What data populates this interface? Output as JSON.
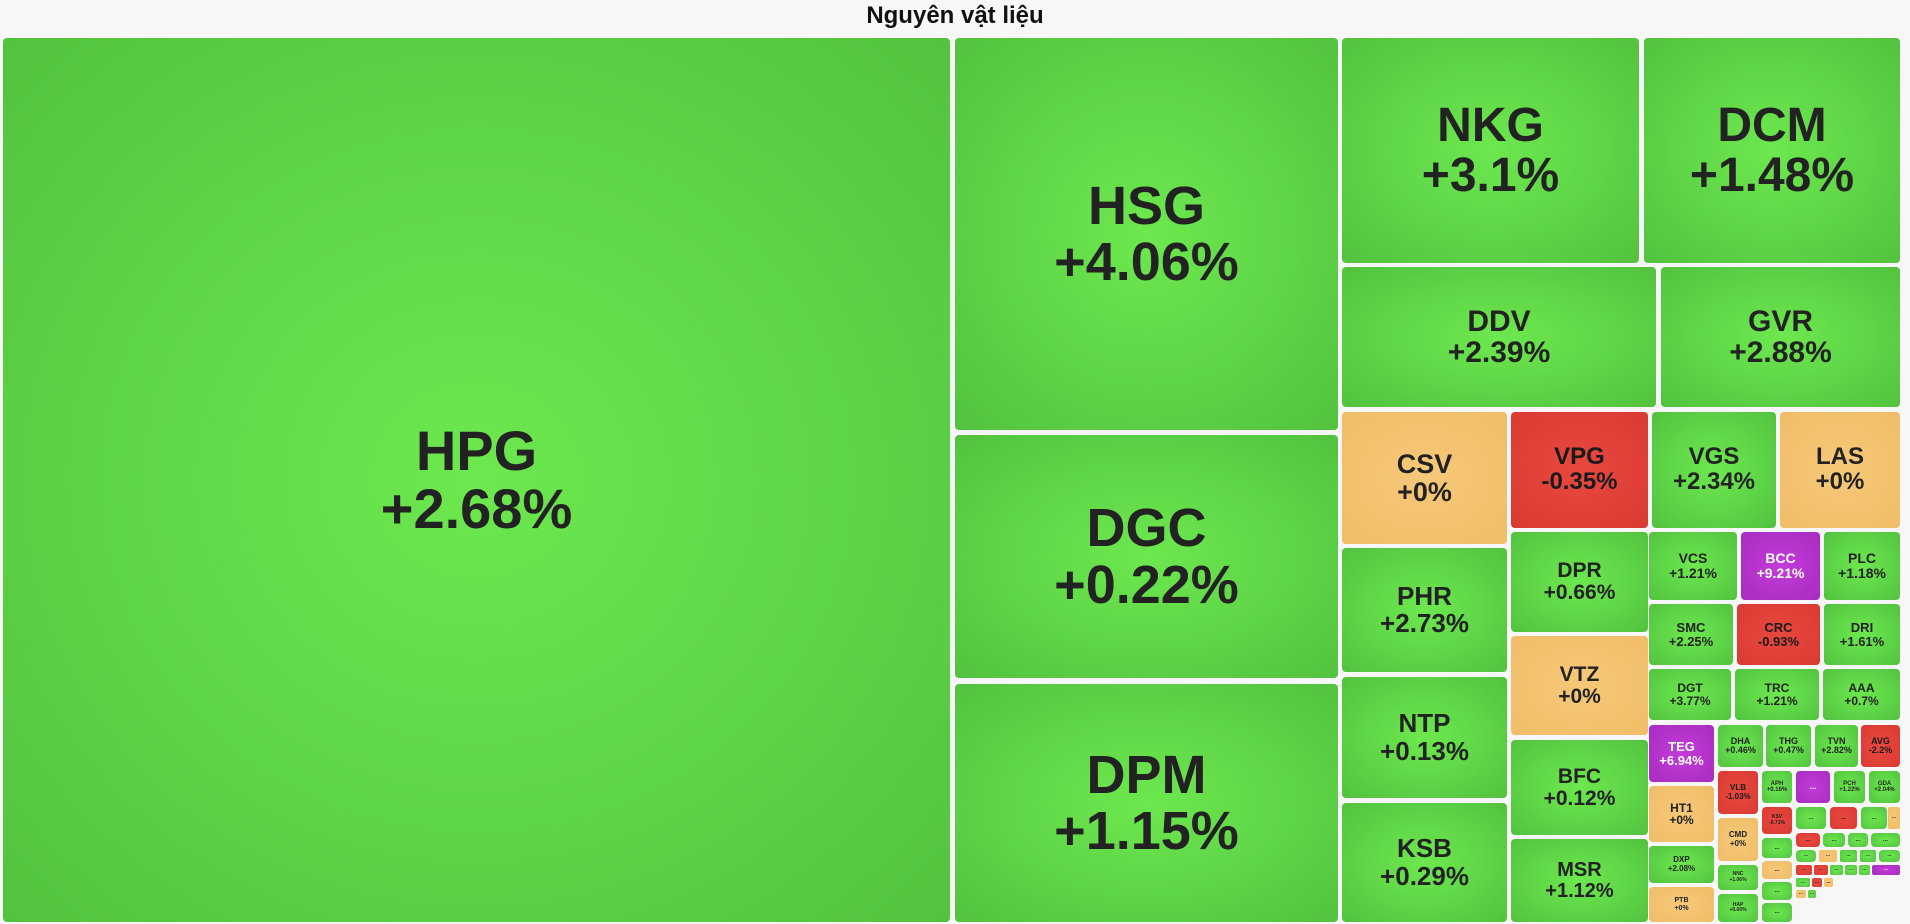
{
  "title": "Nguyên vật liệu",
  "colors": {
    "up": "#5ed447",
    "ref": "#f0bd68",
    "down": "#d93a32",
    "ceil": "#b030c8",
    "background": "#f7f7f7"
  },
  "chart_data": {
    "type": "treemap",
    "title": "Nguyên vật liệu",
    "tiles": [
      {
        "ticker": "HPG",
        "change": "+2.68%",
        "value": 2.68,
        "status": "up"
      },
      {
        "ticker": "HSG",
        "change": "+4.06%",
        "value": 4.06,
        "status": "up"
      },
      {
        "ticker": "DGC",
        "change": "+0.22%",
        "value": 0.22,
        "status": "up"
      },
      {
        "ticker": "DPM",
        "change": "+1.15%",
        "value": 1.15,
        "status": "up"
      },
      {
        "ticker": "NKG",
        "change": "+3.1%",
        "value": 3.1,
        "status": "up"
      },
      {
        "ticker": "DCM",
        "change": "+1.48%",
        "value": 1.48,
        "status": "up"
      },
      {
        "ticker": "DDV",
        "change": "+2.39%",
        "value": 2.39,
        "status": "up"
      },
      {
        "ticker": "GVR",
        "change": "+2.88%",
        "value": 2.88,
        "status": "up"
      },
      {
        "ticker": "CSV",
        "change": "+0%",
        "value": 0,
        "status": "ref"
      },
      {
        "ticker": "VPG",
        "change": "-0.35%",
        "value": -0.35,
        "status": "down"
      },
      {
        "ticker": "VGS",
        "change": "+2.34%",
        "value": 2.34,
        "status": "up"
      },
      {
        "ticker": "LAS",
        "change": "+0%",
        "value": 0,
        "status": "ref"
      },
      {
        "ticker": "PHR",
        "change": "+2.73%",
        "value": 2.73,
        "status": "up"
      },
      {
        "ticker": "NTP",
        "change": "+0.13%",
        "value": 0.13,
        "status": "up"
      },
      {
        "ticker": "KSB",
        "change": "+0.29%",
        "value": 0.29,
        "status": "up"
      },
      {
        "ticker": "DPR",
        "change": "+0.66%",
        "value": 0.66,
        "status": "up"
      },
      {
        "ticker": "VTZ",
        "change": "+0%",
        "value": 0,
        "status": "ref"
      },
      {
        "ticker": "BFC",
        "change": "+0.12%",
        "value": 0.12,
        "status": "up"
      },
      {
        "ticker": "MSR",
        "change": "+1.12%",
        "value": 1.12,
        "status": "up"
      },
      {
        "ticker": "VCS",
        "change": "+1.21%",
        "value": 1.21,
        "status": "up"
      },
      {
        "ticker": "BCC",
        "change": "+9.21%",
        "value": 9.21,
        "status": "ceil"
      },
      {
        "ticker": "PLC",
        "change": "+1.18%",
        "value": 1.18,
        "status": "up"
      },
      {
        "ticker": "SMC",
        "change": "+2.25%",
        "value": 2.25,
        "status": "up"
      },
      {
        "ticker": "CRC",
        "change": "-0.93%",
        "value": -0.93,
        "status": "down"
      },
      {
        "ticker": "DRI",
        "change": "+1.61%",
        "value": 1.61,
        "status": "up"
      },
      {
        "ticker": "DGT",
        "change": "+3.77%",
        "value": 3.77,
        "status": "up"
      },
      {
        "ticker": "TRC",
        "change": "+1.21%",
        "value": 1.21,
        "status": "up"
      },
      {
        "ticker": "AAA",
        "change": "+0.7%",
        "value": 0.7,
        "status": "up"
      },
      {
        "ticker": "TEG",
        "change": "+6.94%",
        "value": 6.94,
        "status": "ceil"
      },
      {
        "ticker": "DHA",
        "change": "+0.46%",
        "value": 0.46,
        "status": "up"
      },
      {
        "ticker": "THG",
        "change": "+0.47%",
        "value": 0.47,
        "status": "up"
      },
      {
        "ticker": "TVN",
        "change": "+2.82%",
        "value": 2.82,
        "status": "up"
      },
      {
        "ticker": "AVG",
        "change": "-2.2%",
        "value": -2.2,
        "status": "down"
      },
      {
        "ticker": "HT1",
        "change": "+0%",
        "value": 0,
        "status": "ref"
      },
      {
        "ticker": "VLB",
        "change": "-1.03%",
        "value": -1.03,
        "status": "down"
      },
      {
        "ticker": "APH",
        "change": "+0.16%",
        "value": 0.16,
        "status": "up"
      },
      {
        "ticker": "...",
        "change": "",
        "value": null,
        "status": "ceil"
      },
      {
        "ticker": "PCH",
        "change": "+1.22%",
        "value": 1.22,
        "status": "up"
      },
      {
        "ticker": "GDA",
        "change": "+2.04%",
        "value": 2.04,
        "status": "up"
      },
      {
        "ticker": "KSV",
        "change": "-0.71%",
        "value": -0.71,
        "status": "down"
      },
      {
        "ticker": "CMD",
        "change": "+0%",
        "value": 0,
        "status": "ref"
      },
      {
        "ticker": "DXP",
        "change": "+2.08%",
        "value": 2.08,
        "status": "up"
      },
      {
        "ticker": "NNC",
        "change": "+1.06%",
        "value": 1.06,
        "status": "up"
      },
      {
        "ticker": "PTB",
        "change": "+0%",
        "value": 0,
        "status": "ref"
      },
      {
        "ticker": "HAP",
        "change": "+0.69%",
        "value": 0.69,
        "status": "up"
      },
      {
        "ticker": "...",
        "change": "",
        "value": null,
        "status": "up"
      },
      {
        "ticker": "...",
        "change": "",
        "value": null,
        "status": "down"
      },
      {
        "ticker": "...",
        "change": "",
        "value": null,
        "status": "up"
      },
      {
        "ticker": "...",
        "change": "",
        "value": null,
        "status": "ref"
      },
      {
        "ticker": "...",
        "change": "",
        "value": null,
        "status": "up"
      },
      {
        "ticker": "...",
        "change": "",
        "value": null,
        "status": "down"
      },
      {
        "ticker": "...",
        "change": "",
        "value": null,
        "status": "up"
      },
      {
        "ticker": "...",
        "change": "",
        "value": null,
        "status": "up"
      },
      {
        "ticker": "...",
        "change": "",
        "value": null,
        "status": "up"
      },
      {
        "ticker": "...",
        "change": "",
        "value": null,
        "status": "ref"
      },
      {
        "ticker": "...",
        "change": "",
        "value": null,
        "status": "up"
      },
      {
        "ticker": "...",
        "change": "",
        "value": null,
        "status": "ref"
      },
      {
        "ticker": "...",
        "change": "",
        "value": null,
        "status": "up"
      },
      {
        "ticker": "...",
        "change": "",
        "value": null,
        "status": "up"
      },
      {
        "ticker": "...",
        "change": "",
        "value": null,
        "status": "up"
      },
      {
        "ticker": "...",
        "change": "",
        "value": null,
        "status": "up"
      },
      {
        "ticker": "...",
        "change": "",
        "value": null,
        "status": "down"
      },
      {
        "ticker": "...",
        "change": "",
        "value": null,
        "status": "down"
      },
      {
        "ticker": "...",
        "change": "",
        "value": null,
        "status": "up"
      },
      {
        "ticker": "...",
        "change": "",
        "value": null,
        "status": "up"
      },
      {
        "ticker": "...",
        "change": "",
        "value": null,
        "status": "up"
      },
      {
        "ticker": "...",
        "change": "",
        "value": null,
        "status": "ceil"
      },
      {
        "ticker": "...",
        "change": "",
        "value": null,
        "status": "up"
      },
      {
        "ticker": "...",
        "change": "",
        "value": null,
        "status": "up"
      },
      {
        "ticker": "...",
        "change": "",
        "value": null,
        "status": "down"
      },
      {
        "ticker": "...",
        "change": "",
        "value": null,
        "status": "ref"
      },
      {
        "ticker": "...",
        "change": "",
        "value": null,
        "status": "ref"
      },
      {
        "ticker": "...",
        "change": "",
        "value": null,
        "status": "up"
      }
    ]
  }
}
